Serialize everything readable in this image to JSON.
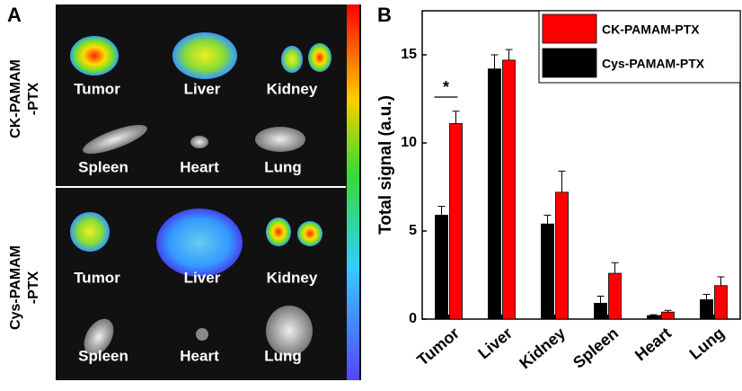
{
  "panel_labels": [
    "A",
    "B"
  ],
  "images": {
    "row_labels": [
      "CK-PAMAM\n-PTX",
      "Cys-PAMAM\n-PTX"
    ],
    "organs": [
      "Tumor",
      "Liver",
      "Kidney",
      "Spleen",
      "Heart",
      "Lung"
    ]
  },
  "chart_data": {
    "type": "bar",
    "categories": [
      "Tumor",
      "Liver",
      "Kidney",
      "Spleen",
      "Heart",
      "Lung"
    ],
    "series": [
      {
        "name": "CK-PAMAM-PTX",
        "color": "#ff0000",
        "values": [
          11.1,
          14.7,
          7.2,
          2.6,
          0.4,
          1.9
        ],
        "errors": [
          0.7,
          0.6,
          1.2,
          0.6,
          0.1,
          0.5
        ]
      },
      {
        "name": "Cys-PAMAM-PTX",
        "color": "#000000",
        "values": [
          5.9,
          14.2,
          5.4,
          0.9,
          0.2,
          1.1
        ],
        "errors": [
          0.5,
          0.8,
          0.5,
          0.4,
          0.05,
          0.3
        ]
      }
    ],
    "y_label": "Total signal (a.u.)",
    "ylim": [
      0,
      17.5
    ],
    "yticks": [
      0,
      5,
      10,
      15
    ],
    "annotation": "*",
    "legend": "top-right"
  }
}
